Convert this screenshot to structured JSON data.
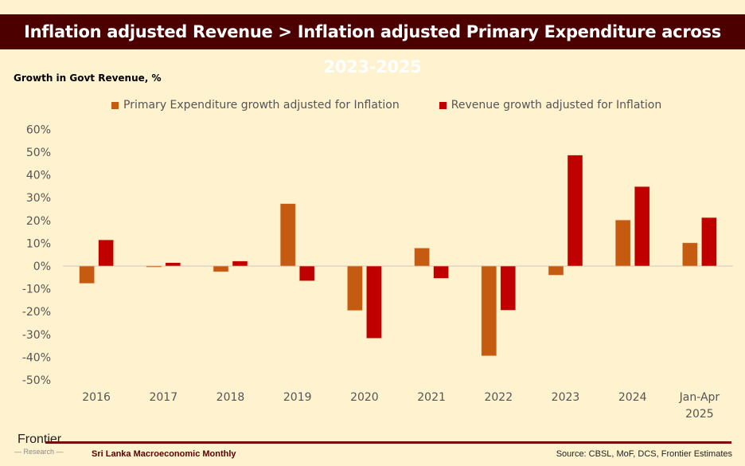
{
  "header": {
    "title": "Inflation adjusted Revenue > Inflation adjusted Primary Expenditure across 2023-2025"
  },
  "footer": {
    "logo_main": "Frontier",
    "logo_sub": "— Research —",
    "publication": "Sri Lanka Macroeconomic Monthly",
    "source": "Source: CBSL, MoF, DCS, Frontier Estimates"
  },
  "colors": {
    "expenditure": "#c55a11",
    "revenue": "#c00000",
    "title_bg": "#4d0000",
    "background": "#fff2cf"
  },
  "chart_data": {
    "type": "bar",
    "title": "",
    "ylabel": "Growth in Govt Revenue, %",
    "xlabel": "",
    "categories": [
      "2016",
      "2017",
      "2018",
      "2019",
      "2020",
      "2021",
      "2022",
      "2023",
      "2024",
      "Jan-Apr 2025"
    ],
    "series": [
      {
        "name": "Primary Expenditure growth adjusted for Inflation",
        "values": [
          -7.6,
          -0.5,
          -2.5,
          27.4,
          -19.5,
          7.9,
          -39.4,
          -4.0,
          20.2,
          10.2
        ]
      },
      {
        "name": "Revenue growth adjusted for Inflation",
        "values": [
          11.5,
          1.5,
          2.2,
          -6.5,
          -31.7,
          -5.4,
          -19.4,
          48.7,
          34.9,
          21.3
        ]
      }
    ],
    "ylim": [
      -50,
      60
    ],
    "yticks": [
      60,
      50,
      40,
      30,
      20,
      10,
      0,
      -10,
      -20,
      -30,
      -40,
      -50
    ],
    "ytick_labels": [
      "60%",
      "50%",
      "40%",
      "30%",
      "20%",
      "10%",
      "0%",
      "-10%",
      "-20%",
      "-30%",
      "-40%",
      "-50%"
    ],
    "grid": false,
    "legend_position": "top"
  }
}
